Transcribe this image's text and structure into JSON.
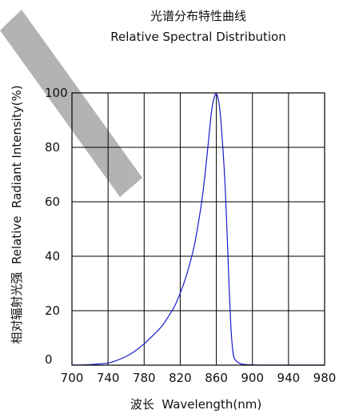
{
  "chart_data": {
    "type": "line",
    "title": "光谱分布特性曲线",
    "subtitle": "Relative Spectral Distribution",
    "xlabel": "波长  Wavelength(nm)",
    "ylabel": "相对辐射光强  Relative  Radiant Intensity(%)",
    "xlim": [
      700,
      980
    ],
    "ylim": [
      0,
      100
    ],
    "xticks": [
      700,
      740,
      780,
      820,
      860,
      900,
      940,
      980
    ],
    "yticks": [
      0,
      20,
      40,
      60,
      80,
      100
    ],
    "grid": true,
    "line_color": "#1a1acc",
    "watermark_color": "#b3b3b3",
    "series": [
      {
        "x": [
          700,
          720,
          740,
          750,
          760,
          770,
          780,
          790,
          800,
          810,
          815,
          820,
          825,
          830,
          835,
          840,
          845,
          850,
          853,
          855,
          857,
          859,
          861,
          863,
          865,
          868,
          870,
          872,
          874,
          876,
          878,
          880,
          885,
          890,
          900,
          920,
          980
        ],
        "y": [
          0,
          0.2,
          0.8,
          1.8,
          3.2,
          5.2,
          7.8,
          11,
          14.5,
          19.5,
          22.5,
          26.5,
          31,
          36.5,
          43,
          52,
          63,
          78,
          88,
          94,
          97.5,
          99.5,
          99,
          96,
          90,
          76,
          64,
          48,
          30,
          15,
          6,
          2.5,
          0.8,
          0.3,
          0.1,
          0,
          0
        ]
      }
    ]
  }
}
